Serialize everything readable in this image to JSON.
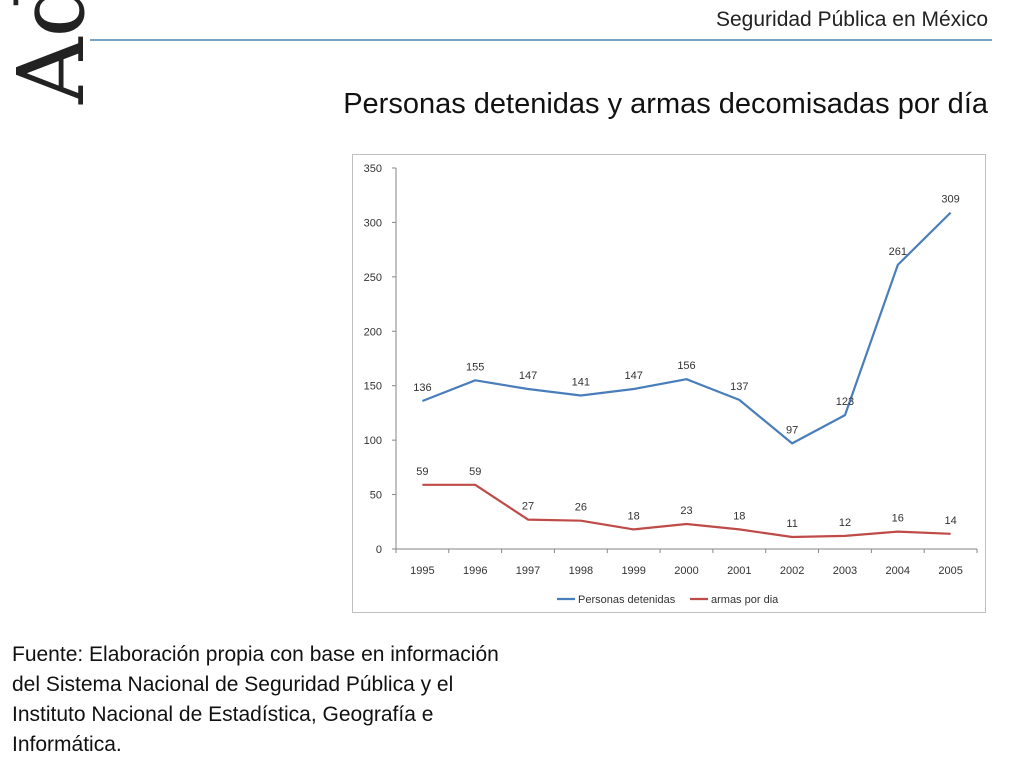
{
  "logo_text": "AdA",
  "header": {
    "title": "Seguridad Pública en México"
  },
  "slide_title": "Personas detenidas y armas decomisadas por día",
  "source_note": "Fuente: Elaboración propia con base en información del Sistema Nacional de Seguridad Pública y el Instituto Nacional de Estadística, Geografía e Informática.",
  "colors": {
    "series_1": "#4a7ebb",
    "series_2": "#be4b48",
    "axis": "#868686",
    "text": "#333333",
    "rule": "#7aa3c4"
  },
  "chart_data": {
    "type": "line",
    "title": "",
    "xlabel": "",
    "ylabel": "",
    "ylim": [
      0,
      350
    ],
    "y_ticks": [
      0,
      50,
      100,
      150,
      200,
      250,
      300,
      350
    ],
    "categories": [
      "1995",
      "1996",
      "1997",
      "1998",
      "1999",
      "2000",
      "2001",
      "2002",
      "2003",
      "2004",
      "2005"
    ],
    "series": [
      {
        "name": "Personas detenidas",
        "color": "#4a7ebb",
        "values": [
          136,
          155,
          147,
          141,
          147,
          156,
          137,
          97,
          123,
          261,
          309
        ]
      },
      {
        "name": "armas por dia",
        "color": "#be4b48",
        "values": [
          59,
          59,
          27,
          26,
          18,
          23,
          18,
          11,
          12,
          16,
          14
        ]
      }
    ],
    "grid": false,
    "legend": "bottom",
    "data_labels": true
  }
}
